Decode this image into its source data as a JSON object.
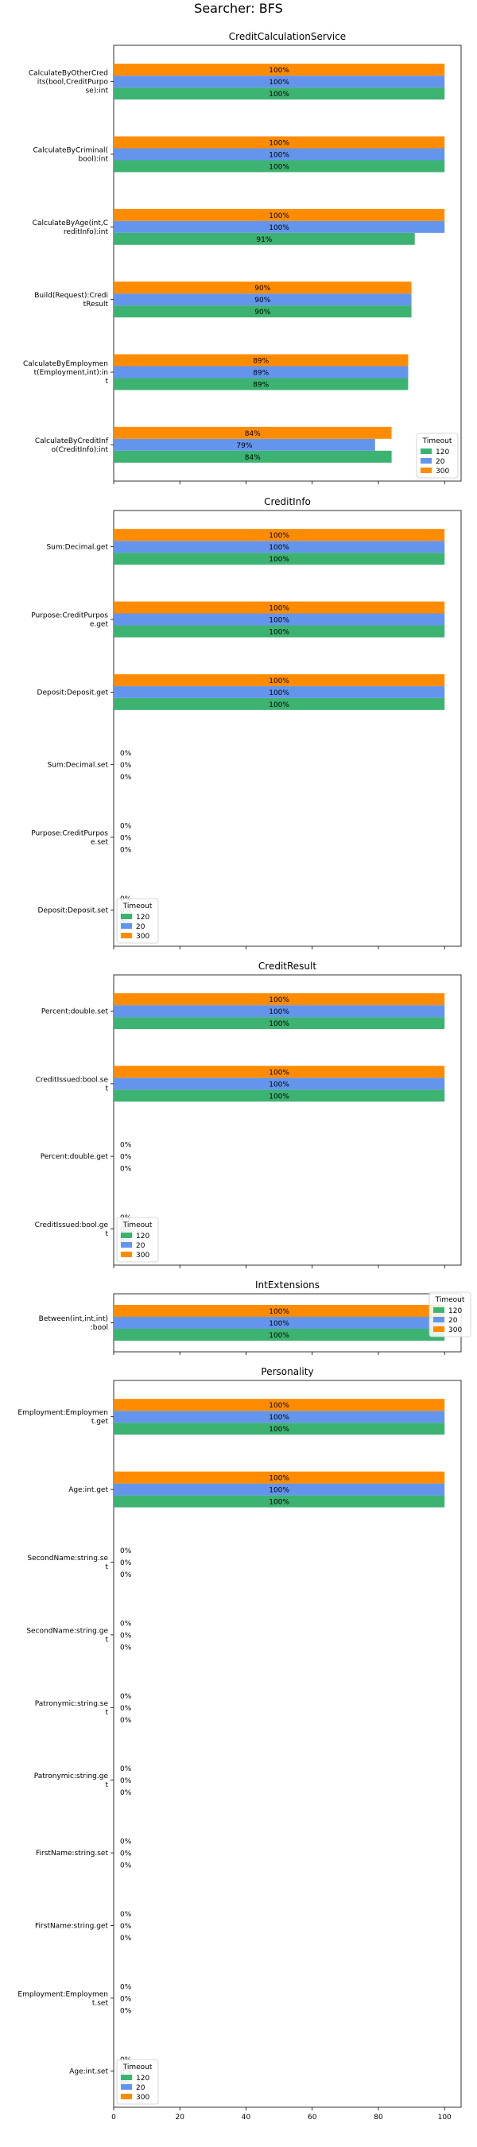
{
  "suptitle": "Searcher: BFS",
  "colors": {
    "120": "#3cb371",
    "20": "#6495ed",
    "300": "#ff8c00"
  },
  "legend_title": "Timeout",
  "chart_data": [
    {
      "type": "bar",
      "orientation": "horizontal",
      "title": "CreditCalculationService",
      "legend_placement": "lower-right",
      "xlim": [
        0,
        105
      ],
      "x_ticks": [
        0,
        20,
        40,
        60,
        80,
        100
      ],
      "show_tick_labels": false,
      "categories": [
        [
          "CalculateByOtherCred",
          "its(bool,CreditPurpo",
          "se):int"
        ],
        [
          "CalculateByCriminal(",
          "bool):int"
        ],
        [
          "CalculateByAge(int,C",
          "reditInfo):int"
        ],
        [
          "Build(Request):Credi",
          "tResult"
        ],
        [
          "CalculateByEmploymen",
          "t(Employment,int):in",
          "t"
        ],
        [
          "CalculateByCreditInf",
          "o(CreditInfo):int"
        ]
      ],
      "series": [
        {
          "name": "120",
          "values": [
            100,
            100,
            91,
            90,
            89,
            84
          ],
          "labels": [
            "100%",
            "100%",
            "91%",
            "90%",
            "89%",
            "84%"
          ]
        },
        {
          "name": "20",
          "values": [
            100,
            100,
            100,
            90,
            89,
            79
          ],
          "labels": [
            "100%",
            "100%",
            "100%",
            "90%",
            "89%",
            "79%"
          ]
        },
        {
          "name": "300",
          "values": [
            100,
            100,
            100,
            90,
            89,
            84
          ],
          "labels": [
            "100%",
            "100%",
            "100%",
            "90%",
            "89%",
            "84%"
          ]
        }
      ]
    },
    {
      "type": "bar",
      "orientation": "horizontal",
      "title": "CreditInfo",
      "legend_placement": "lower-left",
      "xlim": [
        0,
        105
      ],
      "x_ticks": [
        0,
        20,
        40,
        60,
        80,
        100
      ],
      "show_tick_labels": false,
      "categories": [
        [
          "Sum:Decimal.get"
        ],
        [
          "Purpose:CreditPurpos",
          "e.get"
        ],
        [
          "Deposit:Deposit.get"
        ],
        [
          "Sum:Decimal.set"
        ],
        [
          "Purpose:CreditPurpos",
          "e.set"
        ],
        [
          "Deposit:Deposit.set"
        ]
      ],
      "series": [
        {
          "name": "120",
          "values": [
            100,
            100,
            100,
            0,
            0,
            0
          ],
          "labels": [
            "100%",
            "100%",
            "100%",
            "0%",
            "0%",
            "0%"
          ]
        },
        {
          "name": "20",
          "values": [
            100,
            100,
            100,
            0,
            0,
            0
          ],
          "labels": [
            "100%",
            "100%",
            "100%",
            "0%",
            "0%",
            "0%"
          ]
        },
        {
          "name": "300",
          "values": [
            100,
            100,
            100,
            0,
            0,
            0
          ],
          "labels": [
            "100%",
            "100%",
            "100%",
            "0%",
            "0%",
            "0%"
          ]
        }
      ]
    },
    {
      "type": "bar",
      "orientation": "horizontal",
      "title": "CreditResult",
      "legend_placement": "lower-left",
      "xlim": [
        0,
        105
      ],
      "x_ticks": [
        0,
        20,
        40,
        60,
        80,
        100
      ],
      "show_tick_labels": false,
      "categories": [
        [
          "Percent:double.set"
        ],
        [
          "CreditIssued:bool.se",
          "t"
        ],
        [
          "Percent:double.get"
        ],
        [
          "CreditIssued:bool.ge",
          "t"
        ]
      ],
      "series": [
        {
          "name": "120",
          "values": [
            100,
            100,
            0,
            0
          ],
          "labels": [
            "100%",
            "100%",
            "0%",
            "0%"
          ]
        },
        {
          "name": "20",
          "values": [
            100,
            100,
            0,
            0
          ],
          "labels": [
            "100%",
            "100%",
            "0%",
            "0%"
          ]
        },
        {
          "name": "300",
          "values": [
            100,
            100,
            0,
            0
          ],
          "labels": [
            "100%",
            "100%",
            "0%",
            "0%"
          ]
        }
      ]
    },
    {
      "type": "bar",
      "orientation": "horizontal",
      "title": "IntExtensions",
      "legend_placement": "upper-right",
      "xlim": [
        0,
        105
      ],
      "x_ticks": [
        0,
        20,
        40,
        60,
        80,
        100
      ],
      "show_tick_labels": false,
      "categories": [
        [
          "Between(int,int,int)",
          ":bool"
        ]
      ],
      "series": [
        {
          "name": "120",
          "values": [
            100
          ],
          "labels": [
            "100%"
          ]
        },
        {
          "name": "20",
          "values": [
            100
          ],
          "labels": [
            "100%"
          ]
        },
        {
          "name": "300",
          "values": [
            100
          ],
          "labels": [
            "100%"
          ]
        }
      ]
    },
    {
      "type": "bar",
      "orientation": "horizontal",
      "title": "Personality",
      "legend_placement": "lower-left",
      "xlim": [
        0,
        105
      ],
      "x_ticks": [
        0,
        20,
        40,
        60,
        80,
        100
      ],
      "show_tick_labels": true,
      "categories": [
        [
          "Employment:Employmen",
          "t.get"
        ],
        [
          "Age:int.get"
        ],
        [
          "SecondName:string.se",
          "t"
        ],
        [
          "SecondName:string.ge",
          "t"
        ],
        [
          "Patronymic:string.se",
          "t"
        ],
        [
          "Patronymic:string.ge",
          "t"
        ],
        [
          "FirstName:string.set"
        ],
        [
          "FirstName:string.get"
        ],
        [
          "Employment:Employmen",
          "t.set"
        ],
        [
          "Age:int.set"
        ]
      ],
      "series": [
        {
          "name": "120",
          "values": [
            100,
            100,
            0,
            0,
            0,
            0,
            0,
            0,
            0,
            0
          ],
          "labels": [
            "100%",
            "100%",
            "0%",
            "0%",
            "0%",
            "0%",
            "0%",
            "0%",
            "0%",
            "0%"
          ]
        },
        {
          "name": "20",
          "values": [
            100,
            100,
            0,
            0,
            0,
            0,
            0,
            0,
            0,
            0
          ],
          "labels": [
            "100%",
            "100%",
            "0%",
            "0%",
            "0%",
            "0%",
            "0%",
            "0%",
            "0%",
            "0%"
          ]
        },
        {
          "name": "300",
          "values": [
            100,
            100,
            0,
            0,
            0,
            0,
            0,
            0,
            0,
            0
          ],
          "labels": [
            "100%",
            "100%",
            "0%",
            "0%",
            "0%",
            "0%",
            "0%",
            "0%",
            "0%",
            "0%"
          ]
        }
      ]
    }
  ]
}
